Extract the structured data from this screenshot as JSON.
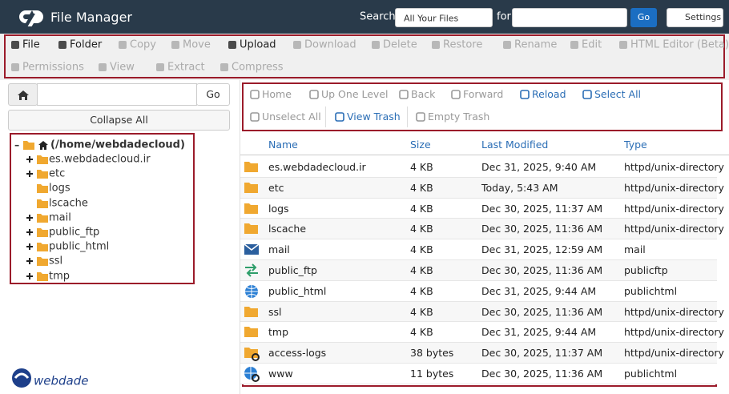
{
  "header": {
    "title": "File Manager",
    "search_label": "Search",
    "search_scope": "All Your Files",
    "for_label": "for",
    "go": "Go",
    "settings": "Settings"
  },
  "toolbar": [
    {
      "label": "File",
      "enabled": true
    },
    {
      "label": "Folder",
      "enabled": true
    },
    {
      "label": "Copy",
      "enabled": false
    },
    {
      "label": "Move",
      "enabled": false
    },
    {
      "label": "Upload",
      "enabled": true
    },
    {
      "label": "Download",
      "enabled": false
    },
    {
      "label": "Delete",
      "enabled": false
    },
    {
      "label": "Restore",
      "enabled": false
    },
    {
      "label": "Rename",
      "enabled": false
    },
    {
      "label": "Edit",
      "enabled": false
    },
    {
      "label": "HTML Editor (Beta)",
      "enabled": false
    },
    {
      "label": "Permissions",
      "enabled": false
    },
    {
      "label": "View",
      "enabled": false
    },
    {
      "label": "Extract",
      "enabled": false
    },
    {
      "label": "Compress",
      "enabled": false
    }
  ],
  "sidebar": {
    "go": "Go",
    "collapse": "Collapse All",
    "root": "(/home/webdadecloud)",
    "tree": [
      {
        "name": "es.webdadecloud.ir",
        "expandable": true
      },
      {
        "name": "etc",
        "expandable": true
      },
      {
        "name": "logs",
        "expandable": false
      },
      {
        "name": "lscache",
        "expandable": false
      },
      {
        "name": "mail",
        "expandable": true
      },
      {
        "name": "public_ftp",
        "expandable": true
      },
      {
        "name": "public_html",
        "expandable": true
      },
      {
        "name": "ssl",
        "expandable": true
      },
      {
        "name": "tmp",
        "expandable": true
      }
    ]
  },
  "nav": [
    {
      "label": "Home",
      "enabled": false
    },
    {
      "label": "Up One Level",
      "enabled": false
    },
    {
      "label": "Back",
      "enabled": false
    },
    {
      "label": "Forward",
      "enabled": false
    },
    {
      "label": "Reload",
      "enabled": true
    },
    {
      "label": "Select All",
      "enabled": true
    },
    {
      "label": "Unselect All",
      "enabled": false
    },
    {
      "label": "View Trash",
      "enabled": true
    },
    {
      "label": "Empty Trash",
      "enabled": false
    }
  ],
  "table": {
    "columns": [
      "Name",
      "Size",
      "Last Modified",
      "Type"
    ],
    "rows": [
      {
        "icon": "folder",
        "name": "es.webdadecloud.ir",
        "size": "4 KB",
        "modified": "Dec 31, 2025, 9:40 AM",
        "type": "httpd/unix-directory"
      },
      {
        "icon": "folder",
        "name": "etc",
        "size": "4 KB",
        "modified": "Today, 5:43 AM",
        "type": "httpd/unix-directory"
      },
      {
        "icon": "folder",
        "name": "logs",
        "size": "4 KB",
        "modified": "Dec 30, 2025, 11:37 AM",
        "type": "httpd/unix-directory"
      },
      {
        "icon": "folder",
        "name": "lscache",
        "size": "4 KB",
        "modified": "Dec 30, 2025, 11:36 AM",
        "type": "httpd/unix-directory"
      },
      {
        "icon": "mail",
        "name": "mail",
        "size": "4 KB",
        "modified": "Dec 31, 2025, 12:59 AM",
        "type": "mail"
      },
      {
        "icon": "ftp",
        "name": "public_ftp",
        "size": "4 KB",
        "modified": "Dec 30, 2025, 11:36 AM",
        "type": "publicftp"
      },
      {
        "icon": "globe",
        "name": "public_html",
        "size": "4 KB",
        "modified": "Dec 31, 2025, 9:44 AM",
        "type": "publichtml"
      },
      {
        "icon": "folder",
        "name": "ssl",
        "size": "4 KB",
        "modified": "Dec 30, 2025, 11:36 AM",
        "type": "httpd/unix-directory"
      },
      {
        "icon": "folder",
        "name": "tmp",
        "size": "4 KB",
        "modified": "Dec 31, 2025, 9:44 AM",
        "type": "httpd/unix-directory"
      },
      {
        "icon": "folder-link",
        "name": "access-logs",
        "size": "38 bytes",
        "modified": "Dec 30, 2025, 11:37 AM",
        "type": "httpd/unix-directory"
      },
      {
        "icon": "globe-link",
        "name": "www",
        "size": "11 bytes",
        "modified": "Dec 30, 2025, 11:36 AM",
        "type": "publichtml"
      }
    ]
  },
  "logo": "webdade"
}
